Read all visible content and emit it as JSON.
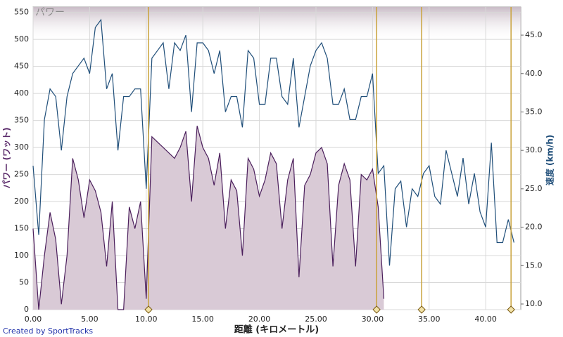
{
  "chart_data": {
    "type": "line",
    "band_label": "パワー",
    "y_label": "パワー (ワット)",
    "y2_label": "速度 (km/h)",
    "x_label": "距離 (キロメートル)",
    "credit": "Created by SportTracks",
    "xlim": [
      0,
      43.1
    ],
    "xticks": [
      {
        "value": 0,
        "label": "0.00"
      },
      {
        "value": 5,
        "label": "5.00"
      },
      {
        "value": 10,
        "label": "10.00"
      },
      {
        "value": 15,
        "label": "15.00"
      },
      {
        "value": 20,
        "label": "20.00"
      },
      {
        "value": 25,
        "label": "25.00"
      },
      {
        "value": 30,
        "label": "30.00"
      },
      {
        "value": 35,
        "label": "35.00"
      },
      {
        "value": 40,
        "label": "40.00"
      }
    ],
    "ylim": [
      0,
      560
    ],
    "yticks": [
      0,
      50,
      100,
      150,
      200,
      250,
      300,
      350,
      400,
      450,
      500,
      550
    ],
    "y2lim": [
      9.27,
      48.66
    ],
    "y2ticks": [
      {
        "value": 10,
        "label": "10.0"
      },
      {
        "value": 15,
        "label": "15.0"
      },
      {
        "value": 20,
        "label": "20.0"
      },
      {
        "value": 25,
        "label": "25.0"
      },
      {
        "value": 30,
        "label": "30.0"
      },
      {
        "value": 35,
        "label": "35.0"
      },
      {
        "value": 40,
        "label": "40.0"
      },
      {
        "value": 45,
        "label": "45.0"
      }
    ],
    "grid": true,
    "lap_markers": [
      10.2,
      30.36,
      34.34,
      42.24
    ],
    "lap_color": "#c9a23a",
    "x": [
      0,
      0.5,
      1,
      1.5,
      2,
      2.5,
      3,
      3.5,
      4,
      4.5,
      5,
      5.5,
      6,
      6.5,
      7,
      7.5,
      8,
      8.5,
      9,
      9.5,
      10,
      10.5,
      11,
      11.5,
      12,
      12.5,
      13,
      13.5,
      14,
      14.5,
      15,
      15.5,
      16,
      16.5,
      17,
      17.5,
      18,
      18.5,
      19,
      19.5,
      20,
      20.5,
      21,
      21.5,
      22,
      22.5,
      23,
      23.5,
      24,
      24.5,
      25,
      25.5,
      26,
      26.5,
      27,
      27.5,
      28,
      28.5,
      29,
      29.5,
      30,
      30.5,
      31,
      31.5,
      32,
      32.5,
      33,
      33.5,
      34,
      34.5,
      35,
      35.5,
      36,
      36.5,
      37,
      37.5,
      38,
      38.5,
      39,
      39.5,
      40,
      40.5,
      41,
      41.5,
      42,
      42.5
    ],
    "series": [
      {
        "name": "パワー",
        "color": "#4b1f5c",
        "area_color": "#d9cad6",
        "axis": "y",
        "values": [
          150,
          0,
          100,
          180,
          130,
          10,
          100,
          280,
          240,
          170,
          240,
          220,
          180,
          80,
          200,
          0,
          0,
          190,
          150,
          200,
          20,
          320,
          310,
          300,
          290,
          280,
          300,
          330,
          200,
          340,
          300,
          280,
          230,
          290,
          150,
          240,
          220,
          100,
          280,
          260,
          210,
          240,
          290,
          270,
          150,
          240,
          280,
          60,
          230,
          250,
          290,
          300,
          270,
          80,
          230,
          270,
          240,
          80,
          250,
          240,
          260,
          190,
          20,
          null,
          null,
          null,
          null,
          null,
          null,
          null,
          null,
          null,
          null,
          null,
          null,
          null,
          null,
          null,
          null,
          null,
          null,
          null,
          null,
          null,
          null,
          null
        ]
      },
      {
        "name": "速度",
        "color": "#1f4e79",
        "axis": "y2",
        "values": [
          28,
          19,
          34,
          38,
          37,
          30,
          37,
          40,
          41,
          42,
          40,
          46,
          47,
          38,
          40,
          30,
          37,
          37,
          38,
          38,
          25,
          42,
          43,
          44,
          38,
          44,
          43,
          45,
          35,
          44,
          44,
          43,
          40,
          43,
          35,
          37,
          37,
          33,
          43,
          42,
          36,
          36,
          42,
          42,
          37,
          36,
          42,
          33,
          37,
          41,
          43,
          44,
          42,
          36,
          36,
          38,
          34,
          34,
          37,
          37,
          40,
          27,
          28,
          15,
          25,
          26,
          20,
          25,
          24,
          27,
          28,
          24,
          23,
          30,
          27,
          24,
          29,
          23,
          27,
          22,
          20,
          31,
          18,
          18,
          21,
          18
        ]
      }
    ]
  }
}
